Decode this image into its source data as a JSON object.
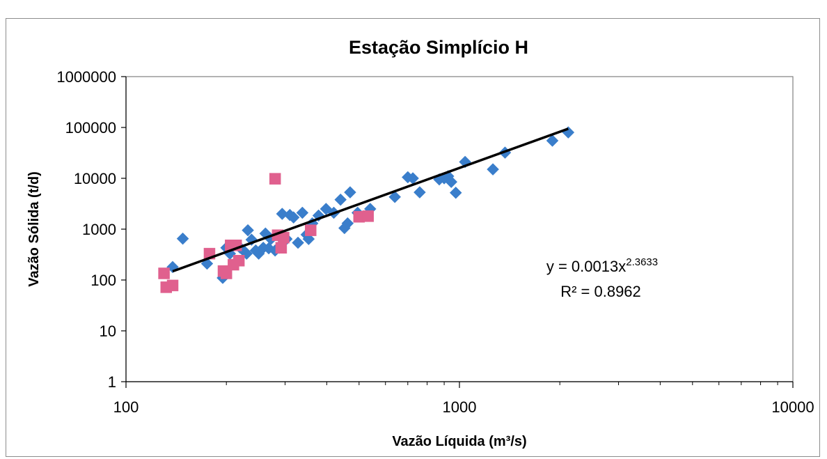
{
  "chart_data": {
    "type": "scatter",
    "title": "Estação Simplício H",
    "xlabel": "Vazão Líquida (m³/s)",
    "ylabel": "Vazão Sólida (t/d)",
    "xscale": "log",
    "yscale": "log",
    "xlim": [
      100,
      10000
    ],
    "ylim": [
      1,
      1000000
    ],
    "x_ticks": [
      "100",
      "1000",
      "10000"
    ],
    "y_ticks": [
      "1",
      "10",
      "100",
      "1000",
      "10000",
      "100000",
      "1000000"
    ],
    "grid": false,
    "legend": "none",
    "series": [
      {
        "marker": "diamond",
        "color": "#3a7ecb",
        "points": [
          [
            138,
            180
          ],
          [
            148,
            650
          ],
          [
            175,
            210
          ],
          [
            195,
            110
          ],
          [
            200,
            430
          ],
          [
            205,
            330
          ],
          [
            215,
            220
          ],
          [
            220,
            430
          ],
          [
            225,
            380
          ],
          [
            230,
            330
          ],
          [
            232,
            950
          ],
          [
            238,
            620
          ],
          [
            245,
            380
          ],
          [
            250,
            330
          ],
          [
            258,
            430
          ],
          [
            262,
            820
          ],
          [
            268,
            420
          ],
          [
            272,
            640
          ],
          [
            280,
            380
          ],
          [
            288,
            430
          ],
          [
            294,
            2000
          ],
          [
            303,
            640
          ],
          [
            310,
            1900
          ],
          [
            318,
            1700
          ],
          [
            328,
            540
          ],
          [
            338,
            2100
          ],
          [
            348,
            780
          ],
          [
            353,
            640
          ],
          [
            362,
            1300
          ],
          [
            378,
            1850
          ],
          [
            398,
            2500
          ],
          [
            420,
            2100
          ],
          [
            440,
            3800
          ],
          [
            452,
            1050
          ],
          [
            462,
            1300
          ],
          [
            470,
            5300
          ],
          [
            495,
            2100
          ],
          [
            540,
            2500
          ],
          [
            640,
            4300
          ],
          [
            700,
            10500
          ],
          [
            725,
            10000
          ],
          [
            760,
            5300
          ],
          [
            870,
            9500
          ],
          [
            900,
            10000
          ],
          [
            925,
            11000
          ],
          [
            945,
            8500
          ],
          [
            975,
            5200
          ],
          [
            1040,
            21000
          ],
          [
            1260,
            15000
          ],
          [
            1370,
            32000
          ],
          [
            1900,
            55000
          ],
          [
            2120,
            80000
          ]
        ]
      },
      {
        "marker": "square",
        "color": "#e0608e",
        "points": [
          [
            130,
            135
          ],
          [
            132,
            72
          ],
          [
            138,
            78
          ],
          [
            178,
            330
          ],
          [
            196,
            150
          ],
          [
            200,
            135
          ],
          [
            206,
            480
          ],
          [
            210,
            200
          ],
          [
            214,
            480
          ],
          [
            218,
            240
          ],
          [
            280,
            9800
          ],
          [
            285,
            760
          ],
          [
            292,
            430
          ],
          [
            297,
            680
          ],
          [
            358,
            950
          ],
          [
            500,
            1750
          ],
          [
            532,
            1800
          ]
        ]
      }
    ],
    "trendline": {
      "type": "power",
      "a": 0.0013,
      "b": 2.3633,
      "x_range": [
        138,
        2120
      ],
      "color": "#000000"
    },
    "annotations": {
      "equation_prefix": "y = 0.0013x",
      "equation_exponent": "2.3633",
      "r_squared": "R² = 0.8962"
    }
  }
}
